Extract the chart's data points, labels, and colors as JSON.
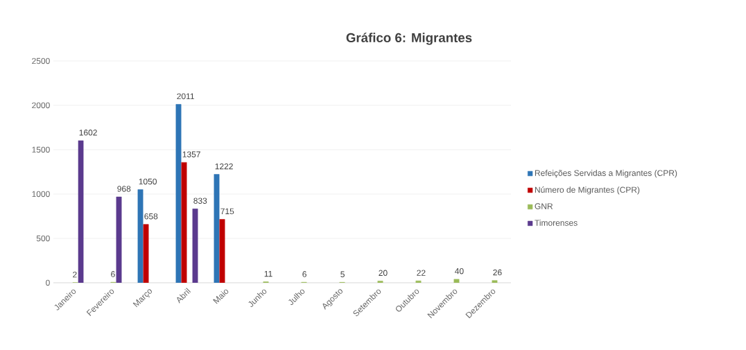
{
  "chart_data": {
    "type": "bar",
    "title": "Gráfico 6: Migrantes",
    "categories": [
      "Janeiro",
      "Fevereiro",
      "Março",
      "Abril",
      "Maio",
      "Junho",
      "Julho",
      "Agosto",
      "Setembro",
      "Outubro",
      "Novembro",
      "Dezembro"
    ],
    "series": [
      {
        "name": "Refeições Servidas a Migrantes (CPR)",
        "color": "#2e75b6",
        "values": [
          null,
          null,
          1050,
          2011,
          1222,
          null,
          null,
          null,
          null,
          null,
          null,
          null
        ]
      },
      {
        "name": "Número de Migrantes (CPR)",
        "color": "#c00000",
        "values": [
          null,
          null,
          658,
          1357,
          715,
          null,
          null,
          null,
          null,
          null,
          null,
          null
        ]
      },
      {
        "name": "GNR",
        "color": "#9bbb59",
        "values": [
          2,
          6,
          null,
          null,
          null,
          11,
          6,
          5,
          20,
          22,
          40,
          26
        ]
      },
      {
        "name": "Timorenses",
        "color": "#5b3a8e",
        "values": [
          1602,
          968,
          null,
          833,
          null,
          null,
          null,
          null,
          null,
          null,
          null,
          null
        ]
      }
    ],
    "ylim": [
      0,
      2500
    ],
    "yticks": [
      0,
      500,
      1000,
      1500,
      2000,
      2500
    ],
    "grid": "y",
    "legend": "right",
    "data_labels": true
  }
}
